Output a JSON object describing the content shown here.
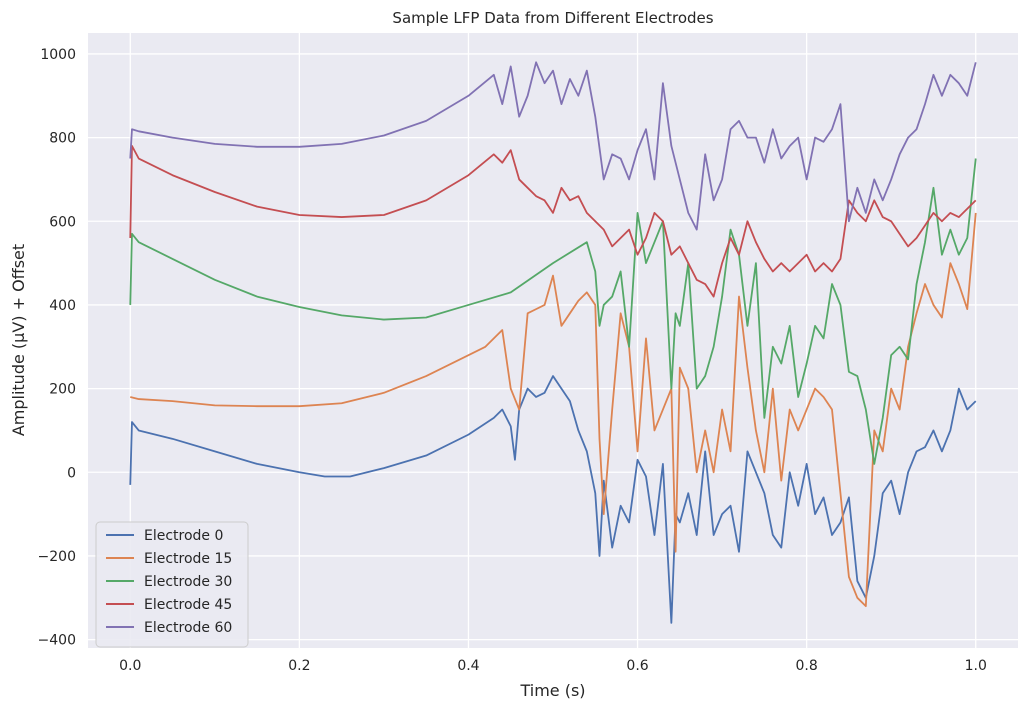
{
  "chart_data": {
    "type": "line",
    "title": "Sample LFP Data from Different Electrodes",
    "xlabel": "Time (s)",
    "ylabel": "Amplitude (μV) + Offset",
    "xlim": [
      -0.05,
      1.05
    ],
    "ylim": [
      -420,
      1050
    ],
    "x_ticks": [
      0.0,
      0.2,
      0.4,
      0.6,
      0.8,
      1.0
    ],
    "x_tick_labels": [
      "0.0",
      "0.2",
      "0.4",
      "0.6",
      "0.8",
      "1.0"
    ],
    "y_ticks": [
      -400,
      -200,
      0,
      200,
      400,
      600,
      800,
      1000
    ],
    "y_tick_labels": [
      "−400",
      "−200",
      "0",
      "200",
      "400",
      "600",
      "800",
      "1000"
    ],
    "grid": true,
    "legend_position": "lower-left",
    "background": "#eaeaf2",
    "series": [
      {
        "name": "Electrode 0",
        "color": "#4c72b0",
        "x": [
          0.0,
          0.002,
          0.01,
          0.05,
          0.1,
          0.15,
          0.2,
          0.23,
          0.26,
          0.3,
          0.35,
          0.4,
          0.43,
          0.44,
          0.45,
          0.455,
          0.46,
          0.47,
          0.48,
          0.49,
          0.5,
          0.51,
          0.52,
          0.53,
          0.54,
          0.55,
          0.555,
          0.56,
          0.565,
          0.57,
          0.58,
          0.59,
          0.6,
          0.61,
          0.62,
          0.63,
          0.64,
          0.645,
          0.65,
          0.66,
          0.67,
          0.68,
          0.69,
          0.7,
          0.71,
          0.72,
          0.73,
          0.74,
          0.75,
          0.76,
          0.77,
          0.78,
          0.79,
          0.8,
          0.81,
          0.82,
          0.83,
          0.84,
          0.85,
          0.86,
          0.87,
          0.88,
          0.89,
          0.9,
          0.91,
          0.92,
          0.93,
          0.94,
          0.95,
          0.96,
          0.97,
          0.98,
          0.99,
          1.0
        ],
        "y": [
          -30,
          120,
          100,
          80,
          50,
          20,
          0,
          -10,
          -10,
          10,
          40,
          90,
          130,
          150,
          110,
          30,
          150,
          200,
          180,
          190,
          230,
          200,
          170,
          100,
          50,
          -50,
          -200,
          -20,
          -100,
          -180,
          -80,
          -120,
          30,
          -10,
          -150,
          20,
          -360,
          -100,
          -120,
          -50,
          -150,
          50,
          -150,
          -100,
          -80,
          -190,
          50,
          0,
          -50,
          -150,
          -180,
          0,
          -80,
          20,
          -100,
          -60,
          -150,
          -120,
          -60,
          -260,
          -300,
          -200,
          -50,
          -20,
          -100,
          0,
          50,
          60,
          100,
          50,
          100,
          200,
          150,
          170
        ]
      },
      {
        "name": "Electrode 15",
        "color": "#dd8452",
        "x": [
          0.0,
          0.01,
          0.05,
          0.1,
          0.15,
          0.2,
          0.25,
          0.3,
          0.35,
          0.4,
          0.42,
          0.43,
          0.44,
          0.45,
          0.46,
          0.47,
          0.48,
          0.49,
          0.5,
          0.51,
          0.52,
          0.53,
          0.54,
          0.55,
          0.555,
          0.56,
          0.57,
          0.58,
          0.59,
          0.6,
          0.61,
          0.62,
          0.63,
          0.64,
          0.645,
          0.65,
          0.66,
          0.67,
          0.68,
          0.69,
          0.7,
          0.71,
          0.72,
          0.73,
          0.74,
          0.75,
          0.76,
          0.77,
          0.78,
          0.79,
          0.8,
          0.81,
          0.82,
          0.83,
          0.84,
          0.85,
          0.86,
          0.87,
          0.88,
          0.89,
          0.9,
          0.91,
          0.92,
          0.93,
          0.94,
          0.95,
          0.96,
          0.97,
          0.98,
          0.99,
          1.0
        ],
        "y": [
          180,
          175,
          170,
          160,
          158,
          158,
          165,
          190,
          230,
          280,
          300,
          320,
          340,
          200,
          150,
          380,
          390,
          400,
          470,
          350,
          380,
          410,
          430,
          400,
          80,
          -100,
          150,
          380,
          300,
          50,
          320,
          100,
          150,
          200,
          -190,
          250,
          200,
          0,
          100,
          0,
          150,
          50,
          420,
          250,
          100,
          0,
          200,
          -20,
          150,
          100,
          150,
          200,
          180,
          150,
          -50,
          -250,
          -300,
          -320,
          100,
          50,
          200,
          150,
          300,
          380,
          450,
          400,
          370,
          500,
          450,
          390,
          620
        ]
      },
      {
        "name": "Electrode 30",
        "color": "#55a868",
        "x": [
          0.0,
          0.002,
          0.01,
          0.05,
          0.1,
          0.15,
          0.2,
          0.25,
          0.3,
          0.35,
          0.4,
          0.45,
          0.5,
          0.54,
          0.55,
          0.555,
          0.56,
          0.57,
          0.58,
          0.59,
          0.6,
          0.61,
          0.62,
          0.63,
          0.64,
          0.645,
          0.65,
          0.66,
          0.67,
          0.68,
          0.69,
          0.7,
          0.71,
          0.72,
          0.73,
          0.74,
          0.75,
          0.76,
          0.77,
          0.78,
          0.79,
          0.8,
          0.81,
          0.82,
          0.83,
          0.84,
          0.85,
          0.86,
          0.87,
          0.88,
          0.89,
          0.9,
          0.91,
          0.92,
          0.93,
          0.94,
          0.95,
          0.96,
          0.97,
          0.98,
          0.99,
          1.0
        ],
        "y": [
          400,
          570,
          550,
          510,
          460,
          420,
          395,
          375,
          365,
          370,
          400,
          430,
          500,
          550,
          480,
          350,
          400,
          420,
          480,
          300,
          620,
          500,
          550,
          600,
          200,
          380,
          350,
          500,
          200,
          230,
          300,
          420,
          580,
          520,
          350,
          500,
          130,
          300,
          260,
          350,
          180,
          260,
          350,
          320,
          450,
          400,
          240,
          230,
          150,
          20,
          130,
          280,
          300,
          270,
          450,
          550,
          680,
          520,
          580,
          520,
          560,
          750
        ]
      },
      {
        "name": "Electrode 45",
        "color": "#c44e52",
        "x": [
          0.0,
          0.002,
          0.01,
          0.05,
          0.1,
          0.15,
          0.2,
          0.25,
          0.3,
          0.35,
          0.4,
          0.43,
          0.44,
          0.45,
          0.46,
          0.47,
          0.48,
          0.49,
          0.5,
          0.51,
          0.52,
          0.53,
          0.54,
          0.55,
          0.56,
          0.57,
          0.58,
          0.59,
          0.6,
          0.61,
          0.62,
          0.63,
          0.64,
          0.65,
          0.66,
          0.67,
          0.68,
          0.69,
          0.7,
          0.71,
          0.72,
          0.73,
          0.74,
          0.75,
          0.76,
          0.77,
          0.78,
          0.79,
          0.8,
          0.81,
          0.82,
          0.83,
          0.84,
          0.85,
          0.86,
          0.87,
          0.88,
          0.89,
          0.9,
          0.91,
          0.92,
          0.93,
          0.94,
          0.95,
          0.96,
          0.97,
          0.98,
          0.99,
          1.0
        ],
        "y": [
          560,
          780,
          750,
          710,
          670,
          635,
          615,
          610,
          615,
          650,
          710,
          760,
          740,
          770,
          700,
          680,
          660,
          650,
          620,
          680,
          650,
          660,
          620,
          600,
          580,
          540,
          560,
          580,
          520,
          560,
          620,
          600,
          520,
          540,
          500,
          460,
          450,
          420,
          500,
          560,
          520,
          600,
          550,
          510,
          480,
          500,
          480,
          500,
          520,
          480,
          500,
          480,
          510,
          650,
          620,
          600,
          650,
          610,
          600,
          570,
          540,
          560,
          590,
          620,
          600,
          620,
          610,
          630,
          650
        ]
      },
      {
        "name": "Electrode 60",
        "color": "#8172b3",
        "x": [
          0.0,
          0.002,
          0.01,
          0.05,
          0.1,
          0.15,
          0.2,
          0.25,
          0.3,
          0.35,
          0.4,
          0.43,
          0.44,
          0.45,
          0.46,
          0.47,
          0.48,
          0.49,
          0.5,
          0.51,
          0.52,
          0.53,
          0.54,
          0.55,
          0.56,
          0.57,
          0.58,
          0.59,
          0.6,
          0.61,
          0.62,
          0.63,
          0.64,
          0.65,
          0.66,
          0.67,
          0.68,
          0.69,
          0.7,
          0.71,
          0.72,
          0.73,
          0.74,
          0.75,
          0.76,
          0.77,
          0.78,
          0.79,
          0.8,
          0.81,
          0.82,
          0.83,
          0.84,
          0.85,
          0.86,
          0.87,
          0.88,
          0.89,
          0.9,
          0.91,
          0.92,
          0.93,
          0.94,
          0.95,
          0.96,
          0.97,
          0.98,
          0.99,
          1.0
        ],
        "y": [
          750,
          820,
          815,
          800,
          785,
          778,
          778,
          785,
          805,
          840,
          900,
          950,
          880,
          970,
          850,
          900,
          980,
          930,
          960,
          880,
          940,
          900,
          960,
          850,
          700,
          760,
          750,
          700,
          770,
          820,
          700,
          930,
          780,
          700,
          620,
          580,
          760,
          650,
          700,
          820,
          840,
          800,
          800,
          740,
          820,
          750,
          780,
          800,
          700,
          800,
          790,
          820,
          880,
          600,
          680,
          620,
          700,
          650,
          700,
          760,
          800,
          820,
          880,
          950,
          900,
          950,
          930,
          900,
          980
        ]
      }
    ]
  }
}
